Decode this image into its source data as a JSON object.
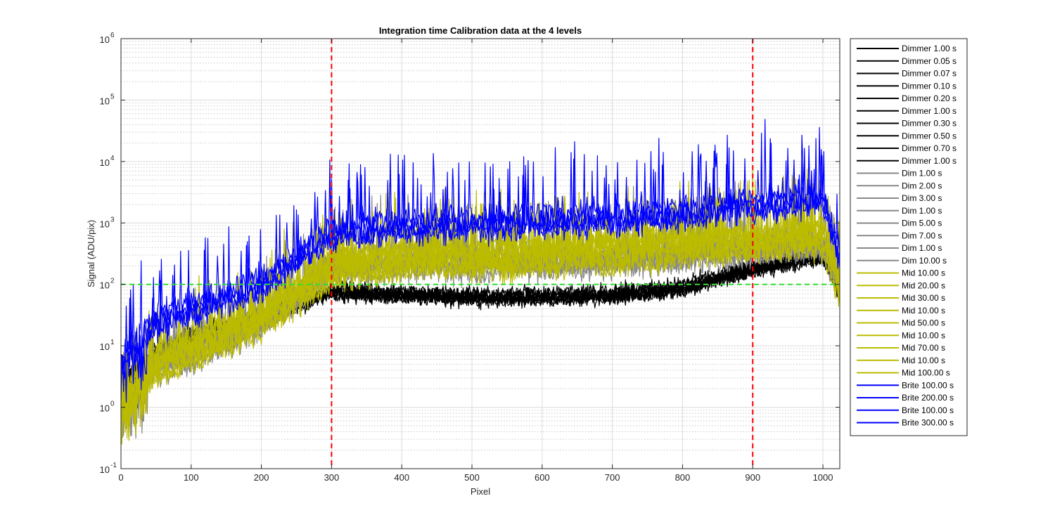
{
  "chart_data": {
    "type": "line",
    "title": "Integration time Calibration data at the 4 levels",
    "xlabel": "Pixel",
    "ylabel": "Signal (ADU/pix)",
    "xlim": [
      0,
      1024
    ],
    "ylim": [
      0.1,
      1000000
    ],
    "yscale": "log",
    "grid": true,
    "minor_grid": true,
    "legend_position": "outside-right",
    "x_ticks": [
      {
        "value": 0,
        "label": "0"
      },
      {
        "value": 100,
        "label": "100"
      },
      {
        "value": 200,
        "label": "200"
      },
      {
        "value": 300,
        "label": "300"
      },
      {
        "value": 400,
        "label": "400"
      },
      {
        "value": 500,
        "label": "500"
      },
      {
        "value": 600,
        "label": "600"
      },
      {
        "value": 700,
        "label": "700"
      },
      {
        "value": 800,
        "label": "800"
      },
      {
        "value": 900,
        "label": "900"
      },
      {
        "value": 1000,
        "label": "1000"
      }
    ],
    "y_ticks": [
      {
        "value": 0.1,
        "base": "10",
        "exp": "-1"
      },
      {
        "value": 1,
        "base": "10",
        "exp": "0"
      },
      {
        "value": 10,
        "base": "10",
        "exp": "1"
      },
      {
        "value": 100,
        "base": "10",
        "exp": "2"
      },
      {
        "value": 1000,
        "base": "10",
        "exp": "3"
      },
      {
        "value": 10000,
        "base": "10",
        "exp": "4"
      },
      {
        "value": 100000,
        "base": "10",
        "exp": "5"
      },
      {
        "value": 1000000,
        "base": "10",
        "exp": "6"
      }
    ],
    "reference_lines": [
      {
        "orientation": "vertical",
        "value": 300,
        "color": "#ff0000",
        "style": "dashed"
      },
      {
        "orientation": "vertical",
        "value": 900,
        "color": "#ff0000",
        "style": "dashed"
      },
      {
        "orientation": "horizontal",
        "value": 100,
        "color": "#33dd33",
        "style": "dashed"
      }
    ],
    "level_profiles": {
      "Dimmer": {
        "color": "#000000",
        "x": [
          0,
          50,
          100,
          200,
          300,
          400,
          500,
          600,
          700,
          800,
          900,
          1000,
          1024
        ],
        "y": [
          3,
          8,
          15,
          30,
          80,
          70,
          65,
          65,
          70,
          90,
          190,
          300,
          80
        ]
      },
      "Dim": {
        "color": "#888888",
        "x": [
          0,
          50,
          100,
          200,
          300,
          400,
          500,
          600,
          700,
          800,
          900,
          1000,
          1024
        ],
        "y": [
          1.5,
          5,
          8,
          25,
          200,
          250,
          250,
          260,
          280,
          350,
          420,
          500,
          120
        ]
      },
      "Mid": {
        "color": "#bbbb00",
        "x": [
          0,
          50,
          100,
          200,
          300,
          400,
          500,
          600,
          700,
          800,
          900,
          1000,
          1024
        ],
        "y": [
          1.5,
          5,
          9,
          30,
          200,
          280,
          300,
          330,
          380,
          450,
          500,
          700,
          100
        ]
      },
      "Brite": {
        "color": "#0000ff",
        "x": [
          0,
          50,
          100,
          200,
          300,
          400,
          500,
          600,
          700,
          800,
          900,
          1000,
          1024
        ],
        "y": [
          6,
          25,
          40,
          100,
          700,
          900,
          1000,
          1100,
          1200,
          1500,
          2000,
          2500,
          300
        ]
      }
    },
    "series": [
      {
        "name": "Dimmer 1.00 s",
        "color": "#000000"
      },
      {
        "name": "Dimmer 0.05 s",
        "color": "#000000"
      },
      {
        "name": "Dimmer 0.07 s",
        "color": "#000000"
      },
      {
        "name": "Dimmer 0.10 s",
        "color": "#000000"
      },
      {
        "name": "Dimmer 0.20 s",
        "color": "#000000"
      },
      {
        "name": "Dimmer 1.00 s",
        "color": "#000000"
      },
      {
        "name": "Dimmer 0.30 s",
        "color": "#000000"
      },
      {
        "name": "Dimmer 0.50 s",
        "color": "#000000"
      },
      {
        "name": "Dimmer 0.70 s",
        "color": "#000000"
      },
      {
        "name": "Dimmer 1.00 s",
        "color": "#000000"
      },
      {
        "name": "Dim 1.00 s",
        "color": "#888888"
      },
      {
        "name": "Dim 2.00 s",
        "color": "#888888"
      },
      {
        "name": "Dim 3.00 s",
        "color": "#888888"
      },
      {
        "name": "Dim 1.00 s",
        "color": "#888888"
      },
      {
        "name": "Dim 5.00 s",
        "color": "#888888"
      },
      {
        "name": "Dim 7.00 s",
        "color": "#888888"
      },
      {
        "name": "Dim 1.00 s",
        "color": "#888888"
      },
      {
        "name": "Dim 10.00 s",
        "color": "#888888"
      },
      {
        "name": "Mid 10.00 s",
        "color": "#bbbb00"
      },
      {
        "name": "Mid 20.00 s",
        "color": "#bbbb00"
      },
      {
        "name": "Mid 30.00 s",
        "color": "#bbbb00"
      },
      {
        "name": "Mid 10.00 s",
        "color": "#bbbb00"
      },
      {
        "name": "Mid 50.00 s",
        "color": "#bbbb00"
      },
      {
        "name": "Mid 10.00 s",
        "color": "#bbbb00"
      },
      {
        "name": "Mid 70.00 s",
        "color": "#bbbb00"
      },
      {
        "name": "Mid 10.00 s",
        "color": "#bbbb00"
      },
      {
        "name": "Mid 100.00 s",
        "color": "#bbbb00"
      },
      {
        "name": "Brite 100.00 s",
        "color": "#0000ff"
      },
      {
        "name": "Brite 200.00 s",
        "color": "#0000ff"
      },
      {
        "name": "Brite 100.00 s",
        "color": "#0000ff"
      },
      {
        "name": "Brite 300.00 s",
        "color": "#0000ff"
      }
    ]
  }
}
